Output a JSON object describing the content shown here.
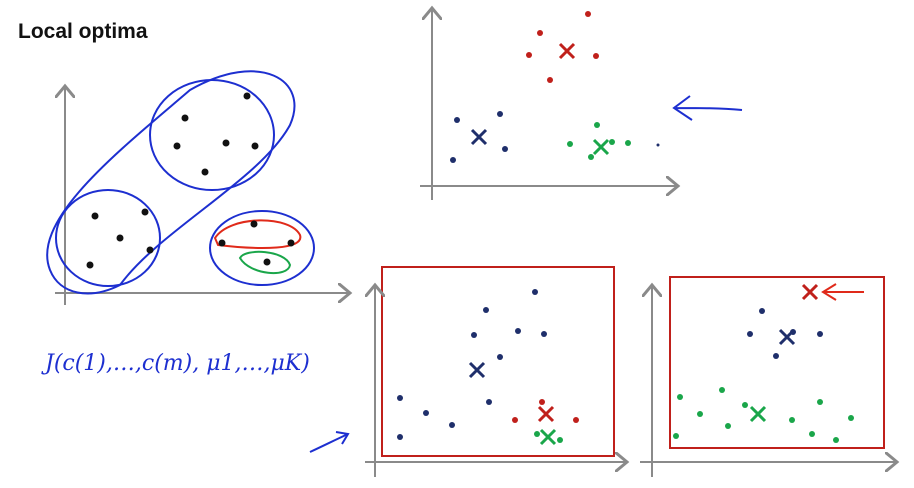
{
  "header": {
    "title": "Local optima"
  },
  "formula": {
    "text": "J(c(1),…,c(m), μ1,…,μK)"
  }
}
